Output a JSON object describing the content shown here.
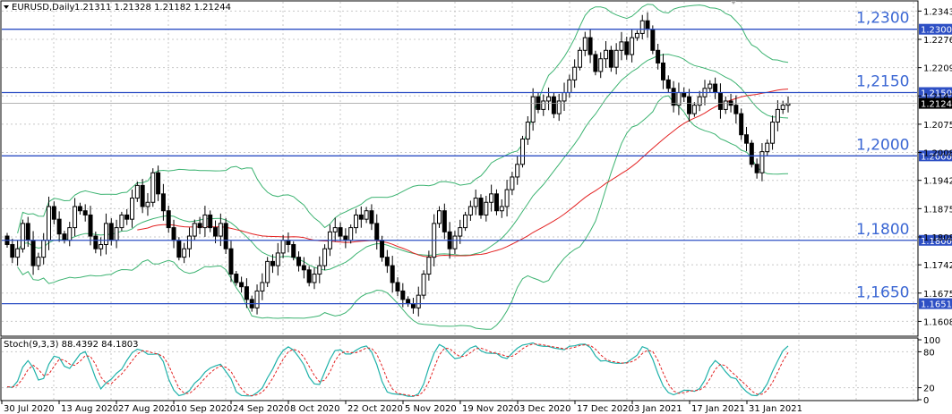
{
  "window": {
    "title": "EURUSD,Daily",
    "ohlc": "1.21311 1.21328 1.21182 1.21244"
  },
  "colors": {
    "bull": "#ffffff",
    "bear": "#000000",
    "bands": "#3cb371",
    "ma": "#e32222",
    "levels": "#2d4fc4",
    "price_tag": "#000000",
    "level_tag": "#2d4fc4",
    "stoch_main": "#20b2aa",
    "stoch_signal": "#e32222"
  },
  "price_axis_ticks": [
    "1.23430",
    "1.22760",
    "1.22090",
    "1.21420",
    "1.20750",
    "1.20080",
    "1.19420",
    "1.18750",
    "1.18080",
    "1.17420",
    "1.16750",
    "1.16080"
  ],
  "levels": [
    {
      "value": 1.23,
      "big_label": "1,2300",
      "tag": "1.23003"
    },
    {
      "value": 1.215,
      "big_label": "1,2150",
      "tag": "1.21501"
    },
    {
      "value": 1.2,
      "big_label": "1,2000",
      "tag": "1.20002"
    },
    {
      "value": 1.18,
      "big_label": "1,1800",
      "tag": "1.18004"
    },
    {
      "value": 1.165,
      "big_label": "1,1650",
      "tag": "1.16510"
    }
  ],
  "current_price": {
    "value": 1.21244,
    "label": "1.21244"
  },
  "oscillator": {
    "title": "Stoch(9,3,3) 88.4392 84.1803",
    "axis_ticks": [
      {
        "value": 100,
        "label": "100"
      },
      {
        "value": 80,
        "label": "80"
      },
      {
        "value": 20,
        "label": "20"
      },
      {
        "value": 0,
        "label": "0"
      }
    ]
  },
  "date_labels": [
    "30 Jul 2020",
    "13 Aug 2020",
    "27 Aug 2020",
    "10 Sep 2020",
    "24 Sep 2020",
    "8 Oct 2020",
    "22 Oct 2020",
    "5 Nov 2020",
    "19 Nov 2020",
    "3 Dec 2020",
    "17 Dec 2020",
    "3 Jan 2021",
    "17 Jan 2021",
    "31 Jan 2021"
  ],
  "chart_data": {
    "type": "candlestick",
    "symbol": "EURUSD",
    "timeframe": "Daily",
    "ylim": [
      1.1575,
      1.2365
    ],
    "closes_approx": [
      1.179,
      1.176,
      1.178,
      1.184,
      1.18,
      1.174,
      1.176,
      1.18,
      1.188,
      1.185,
      1.1815,
      1.18,
      1.183,
      1.188,
      1.187,
      1.186,
      1.181,
      1.178,
      1.179,
      1.184,
      1.18,
      1.183,
      1.186,
      1.185,
      1.19,
      1.193,
      1.188,
      1.189,
      1.196,
      1.191,
      1.187,
      1.183,
      1.18,
      1.176,
      1.178,
      1.181,
      1.184,
      1.183,
      1.186,
      1.183,
      1.181,
      1.184,
      1.178,
      1.172,
      1.17,
      1.169,
      1.166,
      1.164,
      1.168,
      1.17,
      1.175,
      1.174,
      1.177,
      1.18,
      1.179,
      1.176,
      1.174,
      1.173,
      1.17,
      1.172,
      1.174,
      1.178,
      1.182,
      1.183,
      1.181,
      1.18,
      1.183,
      1.186,
      1.185,
      1.187,
      1.184,
      1.18,
      1.176,
      1.174,
      1.17,
      1.168,
      1.166,
      1.165,
      1.164,
      1.167,
      1.172,
      1.176,
      1.184,
      1.187,
      1.182,
      1.178,
      1.181,
      1.183,
      1.186,
      1.188,
      1.19,
      1.186,
      1.189,
      1.191,
      1.187,
      1.188,
      1.192,
      1.195,
      1.198,
      1.204,
      1.208,
      1.214,
      1.211,
      1.213,
      1.214,
      1.21,
      1.213,
      1.215,
      1.218,
      1.221,
      1.225,
      1.228,
      1.224,
      1.22,
      1.223,
      1.225,
      1.221,
      1.225,
      1.227,
      1.224,
      1.228,
      1.229,
      1.232,
      1.23,
      1.225,
      1.222,
      1.218,
      1.216,
      1.212,
      1.215,
      1.214,
      1.21,
      1.212,
      1.214,
      1.216,
      1.217,
      1.215,
      1.211,
      1.213,
      1.212,
      1.21,
      1.205,
      1.203,
      1.198,
      1.196,
      1.201,
      1.203,
      1.208,
      1.211,
      1.212,
      1.2124
    ],
    "horizontal_levels": [
      1.23,
      1.215,
      1.2,
      1.18,
      1.165
    ],
    "indicators": [
      {
        "type": "bollinger_bands"
      },
      {
        "type": "moving_average"
      },
      {
        "type": "stochastic",
        "params": "9,3,3",
        "main": 88.4392,
        "signal": 84.1803
      }
    ]
  }
}
